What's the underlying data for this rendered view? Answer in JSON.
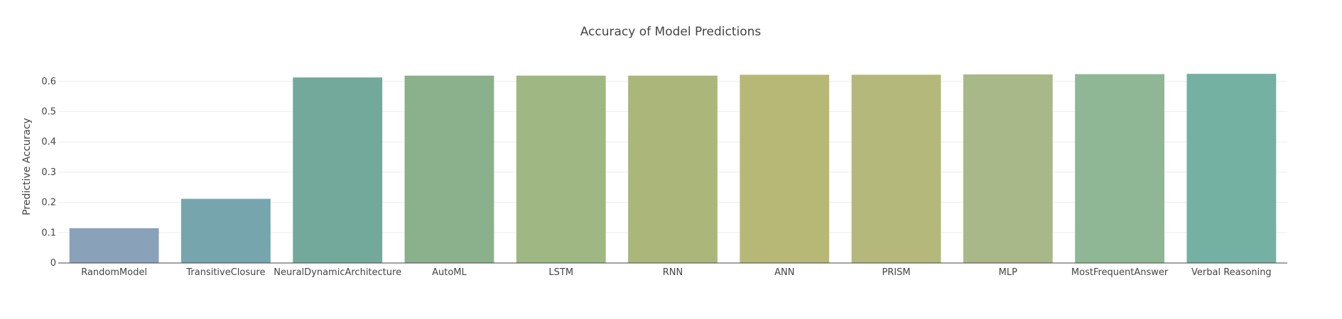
{
  "chart_data": {
    "type": "bar",
    "title": "Accuracy of Model Predictions",
    "xlabel": "",
    "ylabel": "Predictive Accuracy",
    "ylim": [
      0,
      0.63
    ],
    "yticks": [
      0,
      0.1,
      0.2,
      0.3,
      0.4,
      0.5,
      0.6
    ],
    "ytick_labels": [
      "0",
      "0.1",
      "0.2",
      "0.3",
      "0.4",
      "0.5",
      "0.6"
    ],
    "grid": true,
    "legend": "none",
    "categories": [
      "RandomModel",
      "TransitiveClosure",
      "NeuralDynamicArchitecture",
      "AutoML",
      "LSTM",
      "RNN",
      "ANN",
      "PRISM",
      "MLP",
      "MostFrequentAnswer",
      "Verbal Reasoning"
    ],
    "values": [
      0.115,
      0.212,
      0.613,
      0.619,
      0.619,
      0.619,
      0.622,
      0.622,
      0.623,
      0.624,
      0.625
    ],
    "colors": [
      "#8aa1ba",
      "#76a5ad",
      "#73a99b",
      "#8ab18c",
      "#9fb782",
      "#abb77a",
      "#b7b876",
      "#b4b87b",
      "#a8b888",
      "#8fb795",
      "#74b1a3"
    ]
  }
}
